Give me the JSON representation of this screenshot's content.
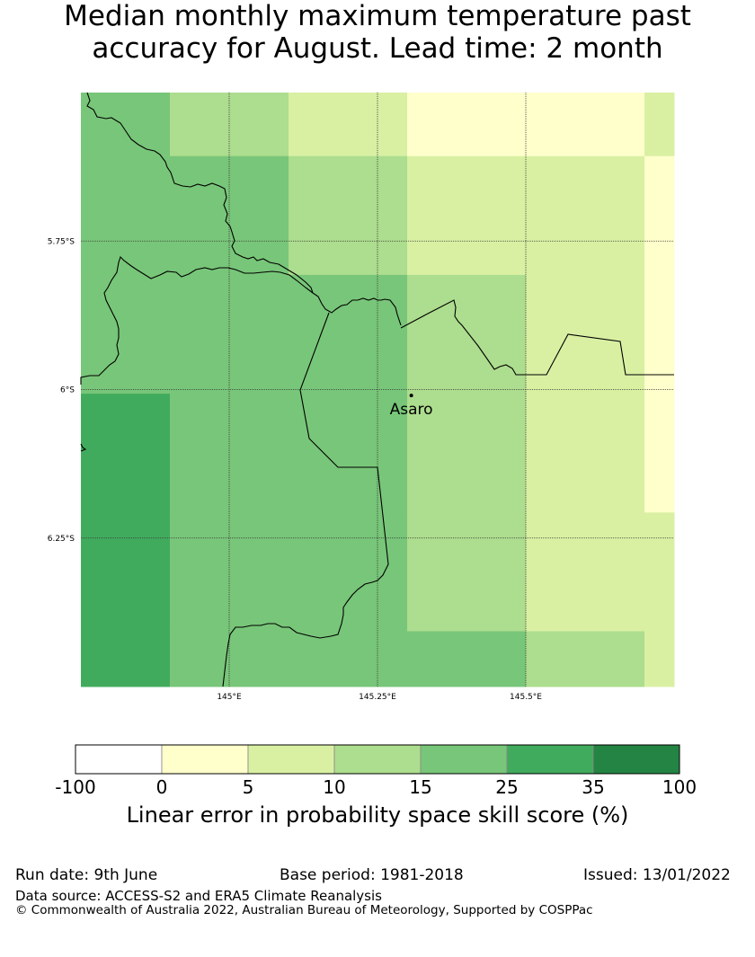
{
  "title": {
    "line1": "Median monthly maximum temperature past",
    "line2": "accuracy for August. Lead time: 2 month"
  },
  "map": {
    "place_label": "Asaro",
    "lat_labels": [
      "5.75°S",
      "6°S",
      "6.25°S"
    ],
    "lon_labels": [
      "145°E",
      "145.25°E",
      "145.5°E"
    ],
    "grid_lats": [
      -5.75,
      -6.0,
      -6.25
    ],
    "grid_lons": [
      145.0,
      145.25,
      145.5
    ],
    "extent": {
      "lon_min": 144.75,
      "lon_max": 145.75,
      "lat_max": -5.5,
      "lat_min": -6.5
    },
    "place_point": {
      "lon": 145.307,
      "lat": -6.01
    },
    "skill_grid": {
      "lon_edges": [
        144.75,
        144.9,
        145.1,
        145.3,
        145.5,
        145.7,
        145.75
      ],
      "lat_edges": [
        -5.5,
        -5.607,
        -5.807,
        -6.007,
        -6.207,
        -6.407,
        -6.5
      ],
      "values": [
        [
          20,
          12,
          7,
          2,
          2,
          7
        ],
        [
          20,
          20,
          12,
          7,
          7,
          2
        ],
        [
          20,
          20,
          20,
          12,
          7,
          2
        ],
        [
          30,
          20,
          20,
          12,
          7,
          2
        ],
        [
          30,
          20,
          20,
          12,
          7,
          7
        ],
        [
          30,
          20,
          20,
          20,
          12,
          7
        ]
      ]
    }
  },
  "colorbar": {
    "title": "Linear error in probability space skill score (%)",
    "bounds": [
      "-100",
      "0",
      "5",
      "10",
      "15",
      "25",
      "35",
      "100"
    ],
    "colors": [
      "#ffffff",
      "#ffffcc",
      "#d9f0a3",
      "#addd8e",
      "#78c679",
      "#41ab5d",
      "#238443"
    ]
  },
  "footer": {
    "run_date": "Run date: 9th June",
    "base_period": "Base period: 1981-2018",
    "issued": "Issued: 13/01/2022",
    "data_source": "Data source: ACCESS-S2 and ERA5 Climate Reanalysis",
    "copyright": "© Commonwealth of Australia 2022, Australian Bureau of Meteorology, Supported by COSPPac"
  }
}
